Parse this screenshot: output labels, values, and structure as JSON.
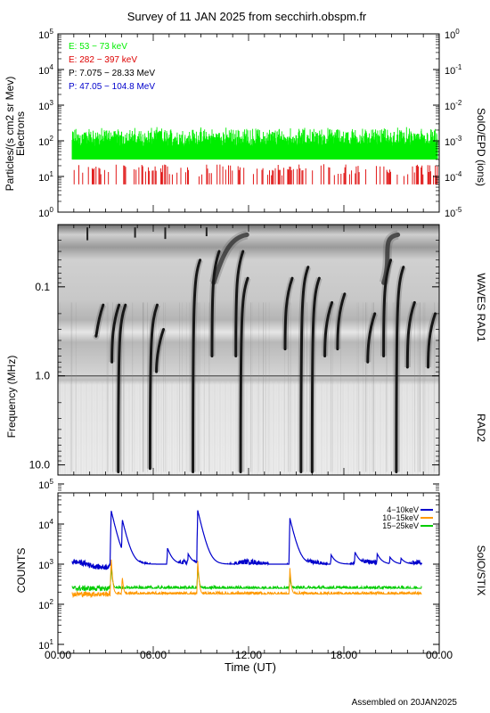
{
  "title": "Survey of 11 JAN 2025 from secchirh.obspm.fr",
  "footer": "Assembled on 20JAN2025",
  "xaxis": {
    "label": "Time (UT)",
    "ticks": [
      "00:00",
      "06:00",
      "12:00",
      "18:00",
      "00:00"
    ],
    "range_hours": [
      0,
      24
    ]
  },
  "panels": {
    "particles": {
      "ylabel_line1": "Particles/(s cm2 sr Mev)",
      "ylabel_line2": "Electrons",
      "right_label": "SolO/EPD (ions)",
      "left_ticks": [
        {
          "base": "10",
          "exp": "5"
        },
        {
          "base": "10",
          "exp": "4"
        },
        {
          "base": "10",
          "exp": "3"
        },
        {
          "base": "10",
          "exp": "2"
        },
        {
          "base": "10",
          "exp": "1"
        },
        {
          "base": "10",
          "exp": "0"
        }
      ],
      "right_ticks": [
        {
          "base": "10",
          "exp": "0"
        },
        {
          "base": "10",
          "exp": "-1"
        },
        {
          "base": "10",
          "exp": "-2"
        },
        {
          "base": "10",
          "exp": "-3"
        },
        {
          "base": "10",
          "exp": "-4"
        },
        {
          "base": "10",
          "exp": "-5"
        }
      ],
      "legend": [
        {
          "text": "E: 53 − 73 keV",
          "color": "#00ee00"
        },
        {
          "text": "E: 282 − 397 keV",
          "color": "#dd0000"
        },
        {
          "text": "P: 7.075 − 28.33 MeV",
          "color": "#000000"
        },
        {
          "text": "P: 47.05 − 104.8 MeV",
          "color": "#0000cc"
        }
      ]
    },
    "spectrogram": {
      "ylabel": "Frequency (MHz)",
      "right_label_top": "WAVES RAD1",
      "right_label_bottom": "RAD2",
      "ticks": [
        "0.1",
        "1.0",
        "10.0"
      ]
    },
    "stix": {
      "ylabel": "COUNTS",
      "right_label": "SolO/STIX",
      "ticks": [
        {
          "base": "10",
          "exp": "5"
        },
        {
          "base": "10",
          "exp": "4"
        },
        {
          "base": "10",
          "exp": "3"
        },
        {
          "base": "10",
          "exp": "2"
        },
        {
          "base": "10",
          "exp": "1"
        }
      ],
      "legend": [
        {
          "text": "4−10keV",
          "color": "#0000cc"
        },
        {
          "text": "10−15keV",
          "color": "#ff9900"
        },
        {
          "text": "15−25keV",
          "color": "#00cc00"
        }
      ]
    }
  },
  "chart_data": [
    {
      "type": "line",
      "panel": "particles",
      "x_unit": "hours UT",
      "yscale": "log",
      "ylim": [
        1,
        100000
      ],
      "y2lim": [
        1e-05,
        1
      ],
      "series": [
        {
          "name": "E: 53 − 73 keV",
          "color": "#00ee00",
          "x_range": [
            0.9,
            23.9
          ],
          "baseline": 30,
          "peak_range": [
            70,
            250
          ]
        },
        {
          "name": "E: 282 − 397 keV",
          "color": "#dd0000",
          "x_range": [
            0.9,
            23.9
          ],
          "baseline": 6,
          "peak_range": [
            10,
            22
          ]
        }
      ]
    },
    {
      "type": "heatmap",
      "panel": "spectrogram",
      "x_unit": "hours UT",
      "yscale": "log",
      "ylim": [
        0.02,
        13
      ],
      "bursts": [
        {
          "t": 2.4,
          "f_top": 0.16,
          "f_bottom": 0.35
        },
        {
          "t": 3.4,
          "f_top": 0.16,
          "f_bottom": 0.7
        },
        {
          "t": 3.8,
          "f_top": 0.16,
          "f_bottom": 12
        },
        {
          "t": 5.8,
          "f_top": 0.16,
          "f_bottom": 11
        },
        {
          "t": 6.2,
          "f_top": 0.3,
          "f_bottom": 0.9
        },
        {
          "t": 8.5,
          "f_top": 0.05,
          "f_bottom": 12
        },
        {
          "t": 9.7,
          "f_top": 0.04,
          "f_bottom": 0.6
        },
        {
          "t": 11.2,
          "f_top": 0.04,
          "f_bottom": 0.6
        },
        {
          "t": 11.5,
          "f_top": 0.08,
          "f_bottom": 12
        },
        {
          "t": 14.3,
          "f_top": 0.08,
          "f_bottom": 0.5
        },
        {
          "t": 15.3,
          "f_top": 0.06,
          "f_bottom": 12
        },
        {
          "t": 16.0,
          "f_top": 0.08,
          "f_bottom": 12
        },
        {
          "t": 16.8,
          "f_top": 0.15,
          "f_bottom": 0.6
        },
        {
          "t": 17.6,
          "f_top": 0.12,
          "f_bottom": 0.5
        },
        {
          "t": 19.5,
          "f_top": 0.2,
          "f_bottom": 0.7
        },
        {
          "t": 20.5,
          "f_top": 0.05,
          "f_bottom": 0.6
        },
        {
          "t": 21.3,
          "f_top": 0.06,
          "f_bottom": 12
        },
        {
          "t": 22.0,
          "f_top": 0.15,
          "f_bottom": 0.8
        },
        {
          "t": 23.3,
          "f_top": 0.2,
          "f_bottom": 0.8
        }
      ],
      "type_iii_drift_arcs": [
        {
          "t_start": 9.8,
          "t_end": 11.9
        },
        {
          "t_start": 20.5,
          "t_end": 21.4
        }
      ]
    },
    {
      "type": "line",
      "panel": "stix",
      "x_unit": "hours UT",
      "yscale": "log",
      "ylim": [
        10,
        100000
      ],
      "series": [
        {
          "name": "4−10keV",
          "color": "#0000cc",
          "x_range": [
            0.9,
            22.9
          ],
          "baseline": 1000,
          "peaks": [
            [
              3.35,
              22000
            ],
            [
              4.05,
              13000
            ],
            [
              6.9,
              2500
            ],
            [
              8.2,
              1800
            ],
            [
              8.8,
              22000
            ],
            [
              14.6,
              14000
            ],
            [
              17.2,
              1700
            ],
            [
              18.7,
              2000
            ],
            [
              20.1,
              1800
            ],
            [
              20.9,
              1500
            ],
            [
              21.6,
              1400
            ]
          ]
        },
        {
          "name": "10−15keV",
          "color": "#ff9900",
          "x_range": [
            0.9,
            22.9
          ],
          "baseline": 180,
          "peaks": [
            [
              3.35,
              1500
            ],
            [
              4.05,
              500
            ],
            [
              8.8,
              1200
            ],
            [
              14.6,
              800
            ]
          ]
        },
        {
          "name": "15−25keV",
          "color": "#00cc00",
          "x_range": [
            0.9,
            22.9
          ],
          "baseline": 250,
          "peaks": [
            [
              3.35,
              1000
            ],
            [
              8.8,
              900
            ],
            [
              14.6,
              500
            ]
          ]
        }
      ]
    }
  ]
}
